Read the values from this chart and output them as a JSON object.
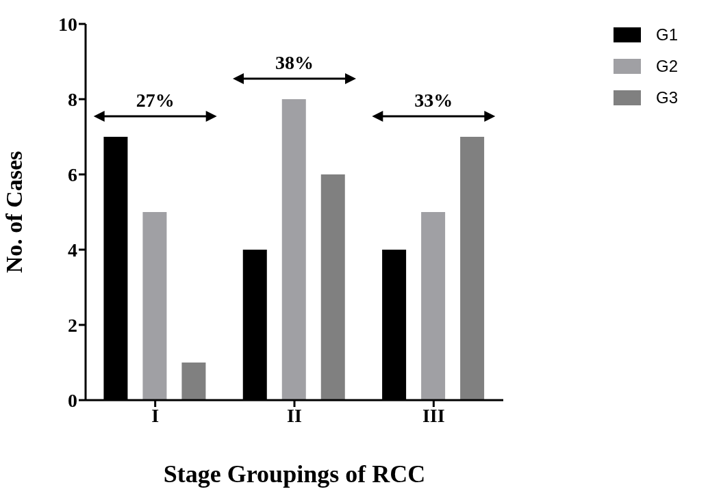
{
  "chart_data": {
    "type": "bar",
    "xlabel": "Stage Groupings of RCC",
    "ylabel": "No. of Cases",
    "categories": [
      "I",
      "II",
      "III"
    ],
    "series": [
      {
        "name": "G1",
        "color": "#000000",
        "values": [
          7,
          4,
          4
        ]
      },
      {
        "name": "G2",
        "color": "#a0a0a4",
        "values": [
          5,
          8,
          5
        ]
      },
      {
        "name": "G3",
        "color": "#808080",
        "values": [
          1,
          6,
          7
        ]
      }
    ],
    "ylim": [
      0,
      10
    ],
    "yticks": [
      0,
      2,
      4,
      6,
      8,
      10
    ],
    "grid": false,
    "legend": "top right",
    "annotations": [
      "27%",
      "38%",
      "33%"
    ]
  }
}
